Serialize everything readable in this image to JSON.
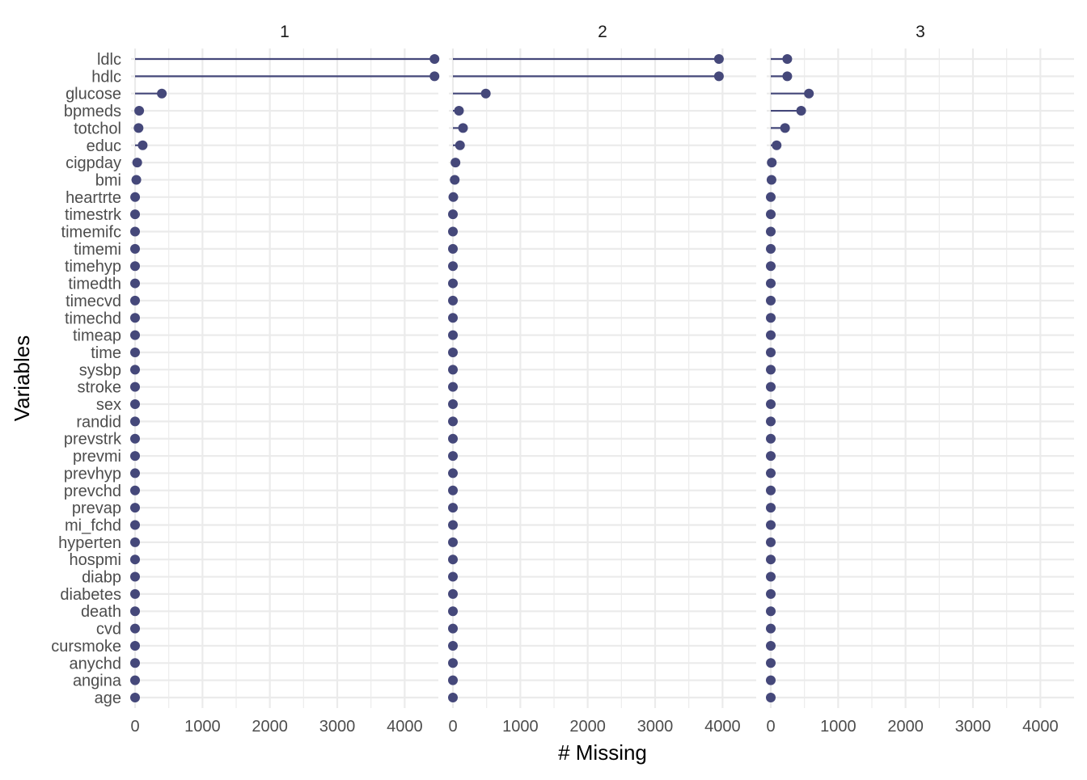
{
  "chart_data": {
    "type": "lollipop",
    "facets": [
      "1",
      "2",
      "3"
    ],
    "xlabel": "# Missing",
    "ylabel": "Variables",
    "xlim": [
      -60,
      4500
    ],
    "x_ticks": [
      0,
      1000,
      2000,
      3000,
      4000
    ],
    "x_tick_labels": [
      "0",
      "1000",
      "2000",
      "3000",
      "4000"
    ],
    "grid": true,
    "colors": {
      "mark": "#45487a",
      "grid": "#ebebeb",
      "text": "#4d4d4d",
      "title": "#000000"
    },
    "categories": [
      "ldlc",
      "hdlc",
      "glucose",
      "bpmeds",
      "totchol",
      "educ",
      "cigpday",
      "bmi",
      "heartrte",
      "timestrk",
      "timemifc",
      "timemi",
      "timehyp",
      "timedth",
      "timecvd",
      "timechd",
      "timeap",
      "time",
      "sysbp",
      "stroke",
      "sex",
      "randid",
      "prevstrk",
      "prevmi",
      "prevhyp",
      "prevchd",
      "prevap",
      "mi_fchd",
      "hyperten",
      "hospmi",
      "diabp",
      "diabetes",
      "death",
      "cvd",
      "cursmoke",
      "anychd",
      "angina",
      "age"
    ],
    "series": [
      {
        "name": "1",
        "values": [
          4443,
          4443,
          397,
          61,
          52,
          113,
          32,
          19,
          1,
          0,
          0,
          0,
          0,
          0,
          0,
          0,
          0,
          0,
          0,
          0,
          0,
          0,
          0,
          0,
          0,
          0,
          0,
          0,
          0,
          0,
          0,
          0,
          0,
          0,
          0,
          0,
          0,
          0
        ]
      },
      {
        "name": "2",
        "values": [
          3947,
          3947,
          488,
          90,
          150,
          105,
          38,
          27,
          6,
          0,
          0,
          0,
          0,
          0,
          0,
          0,
          0,
          0,
          0,
          0,
          0,
          0,
          0,
          0,
          0,
          0,
          0,
          0,
          0,
          0,
          0,
          0,
          0,
          0,
          0,
          0,
          0,
          0
        ]
      },
      {
        "name": "3",
        "values": [
          245,
          245,
          566,
          451,
          212,
          87,
          15,
          11,
          0,
          0,
          0,
          0,
          0,
          0,
          0,
          0,
          0,
          0,
          0,
          0,
          0,
          0,
          0,
          0,
          0,
          0,
          0,
          0,
          0,
          0,
          0,
          0,
          0,
          0,
          0,
          0,
          0,
          0
        ]
      }
    ]
  }
}
